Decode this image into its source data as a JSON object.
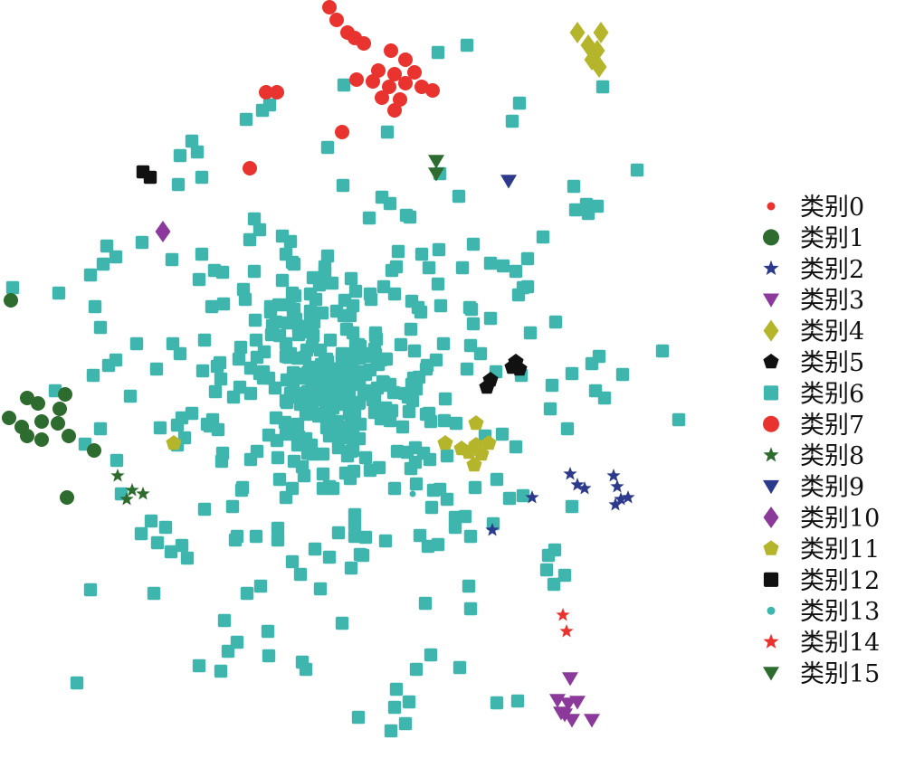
{
  "chart_data": {
    "type": "scatter",
    "title": "",
    "xlabel": "",
    "ylabel": "",
    "xlim": [
      0,
      820
    ],
    "ylim": [
      0,
      838
    ],
    "grid": false,
    "legend_position": "right",
    "series": [
      {
        "name": "类别0",
        "marker": "circle",
        "color": "#e8332f",
        "points": [
          [
            364,
            8
          ],
          [
            372,
            22
          ],
          [
            384,
            36
          ],
          [
            392,
            42
          ],
          [
            402,
            48
          ],
          [
            432,
            56
          ],
          [
            448,
            66
          ],
          [
            418,
            78
          ],
          [
            436,
            82
          ],
          [
            458,
            80
          ],
          [
            394,
            88
          ],
          [
            412,
            90
          ],
          [
            430,
            96
          ],
          [
            448,
            92
          ],
          [
            466,
            96
          ],
          [
            478,
            100
          ],
          [
            442,
            110
          ],
          [
            422,
            108
          ],
          [
            436,
            122
          ],
          [
            294,
            102
          ],
          [
            306,
            102
          ],
          [
            378,
            146
          ],
          [
            276,
            186
          ]
        ]
      },
      {
        "name": "类别1",
        "marker": "circle",
        "color": "#2e6b2e",
        "points": [
          [
            12,
            332
          ],
          [
            30,
            440
          ],
          [
            42,
            446
          ],
          [
            72,
            436
          ],
          [
            66,
            452
          ],
          [
            10,
            462
          ],
          [
            24,
            472
          ],
          [
            46,
            466
          ],
          [
            64,
            468
          ],
          [
            30,
            482
          ],
          [
            46,
            486
          ],
          [
            76,
            482
          ],
          [
            104,
            498
          ],
          [
            74,
            550
          ]
        ]
      },
      {
        "name": "类别2",
        "marker": "star",
        "color": "#2d3a8c",
        "points": [
          [
            630,
            524
          ],
          [
            638,
            536
          ],
          [
            646,
            540
          ],
          [
            678,
            526
          ],
          [
            682,
            538
          ],
          [
            694,
            550
          ],
          [
            680,
            558
          ],
          [
            686,
            552
          ],
          [
            588,
            550
          ],
          [
            544,
            586
          ]
        ]
      },
      {
        "name": "类别3",
        "marker": "triangle-down",
        "color": "#8b3a9c",
        "points": [
          [
            630,
            750
          ],
          [
            616,
            774
          ],
          [
            628,
            778
          ],
          [
            638,
            776
          ],
          [
            620,
            788
          ],
          [
            632,
            796
          ],
          [
            624,
            790
          ],
          [
            654,
            796
          ]
        ]
      },
      {
        "name": "类别4",
        "marker": "diamond",
        "color": "#b5b52c",
        "points": [
          [
            638,
            36
          ],
          [
            664,
            36
          ],
          [
            650,
            50
          ],
          [
            660,
            56
          ],
          [
            654,
            66
          ],
          [
            662,
            74
          ]
        ]
      },
      {
        "name": "类别5",
        "marker": "pentagon",
        "color": "#111111",
        "points": [
          [
            570,
            400
          ],
          [
            566,
            406
          ],
          [
            574,
            408
          ],
          [
            542,
            420
          ],
          [
            538,
            428
          ]
        ]
      },
      {
        "name": "类别6",
        "marker": "square",
        "color": "#3fb6ad",
        "points": []
      },
      {
        "name": "类别7",
        "marker": "circle",
        "color": "#e8332f",
        "points": []
      },
      {
        "name": "类别8",
        "marker": "star",
        "color": "#2e6b2e",
        "points": [
          [
            130,
            526
          ],
          [
            146,
            542
          ],
          [
            140,
            552
          ],
          [
            158,
            546
          ]
        ]
      },
      {
        "name": "类别9",
        "marker": "triangle-down",
        "color": "#2d3a8c",
        "points": [
          [
            562,
            200
          ]
        ]
      },
      {
        "name": "类别10",
        "marker": "diamond",
        "color": "#8b3a9c",
        "points": [
          [
            180,
            256
          ]
        ]
      },
      {
        "name": "类别11",
        "marker": "pentagon",
        "color": "#b5b52c",
        "points": [
          [
            526,
            468
          ],
          [
            492,
            490
          ],
          [
            510,
            496
          ],
          [
            526,
            492
          ],
          [
            540,
            490
          ],
          [
            518,
            500
          ],
          [
            532,
            502
          ],
          [
            524,
            514
          ],
          [
            192,
            490
          ]
        ]
      },
      {
        "name": "类别12",
        "marker": "square",
        "color": "#111111",
        "points": [
          [
            158,
            190
          ],
          [
            166,
            196
          ]
        ]
      },
      {
        "name": "类别13",
        "marker": "circle",
        "color": "#3fb6ad",
        "points": [
          [
            456,
            546
          ]
        ]
      },
      {
        "name": "类别14",
        "marker": "star",
        "color": "#e8332f",
        "points": [
          [
            622,
            680
          ],
          [
            626,
            698
          ]
        ]
      },
      {
        "name": "类别15",
        "marker": "triangle-down",
        "color": "#2e6b2e",
        "points": [
          [
            482,
            178
          ],
          [
            482,
            192
          ]
        ]
      }
    ]
  },
  "legend": {
    "items": [
      {
        "label": "类别0",
        "marker": "circle-small",
        "color": "#e8332f"
      },
      {
        "label": "类别1",
        "marker": "circle",
        "color": "#2e6b2e"
      },
      {
        "label": "类别2",
        "marker": "star",
        "color": "#2d3a8c"
      },
      {
        "label": "类别3",
        "marker": "triangle-down",
        "color": "#8b3a9c"
      },
      {
        "label": "类别4",
        "marker": "diamond",
        "color": "#b5b52c"
      },
      {
        "label": "类别5",
        "marker": "pentagon",
        "color": "#111111"
      },
      {
        "label": "类别6",
        "marker": "square",
        "color": "#3fb6ad"
      },
      {
        "label": "类别7",
        "marker": "circle",
        "color": "#e8332f"
      },
      {
        "label": "类别8",
        "marker": "star",
        "color": "#2e6b2e"
      },
      {
        "label": "类别9",
        "marker": "triangle-down",
        "color": "#2d3a8c"
      },
      {
        "label": "类别10",
        "marker": "diamond",
        "color": "#8b3a9c"
      },
      {
        "label": "类别11",
        "marker": "pentagon",
        "color": "#b5b52c"
      },
      {
        "label": "类别12",
        "marker": "square",
        "color": "#111111"
      },
      {
        "label": "类别13",
        "marker": "circle-small",
        "color": "#3fb6ad"
      },
      {
        "label": "类别14",
        "marker": "star",
        "color": "#e8332f"
      },
      {
        "label": "类别15",
        "marker": "triangle-down",
        "color": "#2e6b2e"
      }
    ]
  }
}
